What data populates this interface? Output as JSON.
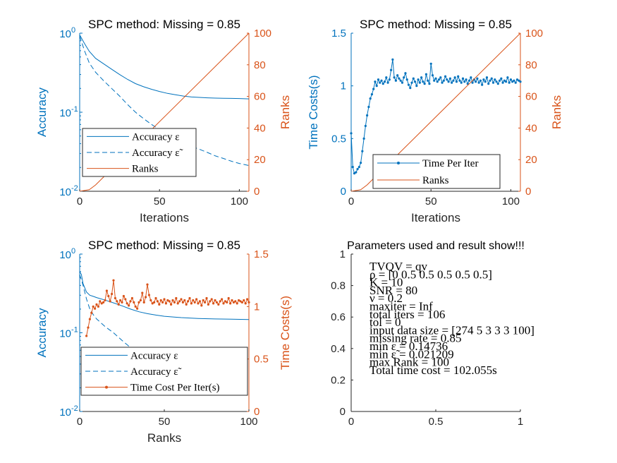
{
  "colors": {
    "blue": "#0072BD",
    "orange": "#D95319",
    "axis": "#262626"
  },
  "chart_data": [
    {
      "type": "line",
      "title": "SPC method: Missing = 0.85",
      "xlabel": "Iterations",
      "ylabel_left": "Accuracy",
      "ylabel_right": "Ranks",
      "left_scale": "log",
      "xlim": [
        0,
        106
      ],
      "ylim_left": [
        0.01,
        1
      ],
      "ylim_right": [
        0,
        100
      ],
      "xticks": [
        "0",
        "50",
        "100"
      ],
      "yticks_left": [
        "10",
        "10",
        "10"
      ],
      "yticks_left_exp": [
        "-2",
        "-1",
        "0"
      ],
      "yticks_right": [
        "0",
        "20",
        "40",
        "60",
        "80",
        "100"
      ],
      "legend": [
        "Accuracy ε",
        "Accuracy ε̃",
        "Ranks"
      ],
      "series": [
        {
          "name": "Accuracy ε",
          "axis": "left",
          "style": "solid",
          "x": [
            0,
            3,
            6,
            10,
            15,
            20,
            25,
            30,
            35,
            40,
            45,
            50,
            55,
            60,
            65,
            70,
            75,
            80,
            85,
            90,
            95,
            100,
            106
          ],
          "y": [
            0.95,
            0.74,
            0.59,
            0.48,
            0.41,
            0.35,
            0.3,
            0.26,
            0.23,
            0.21,
            0.195,
            0.183,
            0.173,
            0.166,
            0.16,
            0.156,
            0.154,
            0.152,
            0.151,
            0.15,
            0.1495,
            0.149,
            0.1474
          ]
        },
        {
          "name": "Accuracy ε̃",
          "axis": "left",
          "style": "dashed",
          "x": [
            0,
            3,
            6,
            10,
            15,
            20,
            25,
            30,
            35,
            40,
            45,
            50,
            55,
            60,
            65,
            70,
            75,
            80,
            85,
            90,
            95,
            100,
            106
          ],
          "y": [
            0.92,
            0.6,
            0.42,
            0.32,
            0.25,
            0.2,
            0.16,
            0.125,
            0.1,
            0.083,
            0.07,
            0.06,
            0.052,
            0.046,
            0.041,
            0.037,
            0.034,
            0.031,
            0.028,
            0.026,
            0.024,
            0.0225,
            0.0212
          ]
        },
        {
          "name": "Ranks",
          "axis": "right",
          "style": "solid",
          "x": [
            0,
            6,
            10,
            106
          ],
          "y": [
            0,
            1,
            4,
            100
          ]
        }
      ]
    },
    {
      "type": "line",
      "title": "SPC method: Missing = 0.85",
      "xlabel": "Iterations",
      "ylabel_left": "Time Costs(s)",
      "ylabel_right": "Ranks",
      "xlim": [
        0,
        106
      ],
      "ylim_left": [
        0,
        1.5
      ],
      "ylim_right": [
        0,
        100
      ],
      "xticks": [
        "0",
        "50",
        "100"
      ],
      "yticks_left": [
        "0",
        "0.5",
        "1",
        "1.5"
      ],
      "yticks_right": [
        "0",
        "20",
        "40",
        "60",
        "80",
        "100"
      ],
      "legend": [
        "Time Per Iter",
        "Ranks"
      ],
      "series": [
        {
          "name": "Time Per Iter",
          "axis": "left",
          "style": "dots",
          "y": [
            0.55,
            0.23,
            0.17,
            0.18,
            0.21,
            0.23,
            0.27,
            0.38,
            0.5,
            0.62,
            0.72,
            0.8,
            0.88,
            0.92,
            0.97,
            1.04,
            1.0,
            1.06,
            1.03,
            1.05,
            1.02,
            1.04,
            1.08,
            1.03,
            1.06,
            1.15,
            1.25,
            1.08,
            1.05,
            1.1,
            1.07,
            1.05,
            1.03,
            1.08,
            1.12,
            1.06,
            1.01,
            0.98,
            1.03,
            1.07,
            1.04,
            1.0,
            1.06,
            1.03,
            1.08,
            1.04,
            1.02,
            1.11,
            1.05,
            1.02,
            1.21,
            1.1,
            1.05,
            1.07,
            1.04,
            1.06,
            1.08,
            1.03,
            1.05,
            1.09,
            1.06,
            1.04,
            1.07,
            1.03,
            1.05,
            1.08,
            1.04,
            1.09,
            1.05,
            1.03,
            1.07,
            1.04,
            1.06,
            1.02,
            1.05,
            1.08,
            1.03,
            1.06,
            1.04,
            1.07,
            1.03,
            1.05,
            1.01,
            1.06,
            1.04,
            1.08,
            1.02,
            1.05,
            1.07,
            1.03,
            1.06,
            1.04,
            1.02,
            1.05,
            1.07,
            1.03,
            1.05,
            1.04,
            1.08,
            1.03,
            1.06,
            1.04,
            1.05,
            1.03,
            1.06,
            1.05,
            1.04
          ]
        },
        {
          "name": "Ranks",
          "axis": "right",
          "style": "solid",
          "x": [
            0,
            6,
            10,
            106
          ],
          "y": [
            0,
            1,
            4,
            100
          ]
        }
      ]
    },
    {
      "type": "line",
      "title": "SPC method: Missing = 0.85",
      "xlabel": "Ranks",
      "ylabel_left": "Accuracy",
      "ylabel_right": "Time Costs(s)",
      "left_scale": "log",
      "xlim": [
        0,
        100
      ],
      "ylim_left": [
        0.01,
        1
      ],
      "ylim_right": [
        0,
        1.5
      ],
      "xticks": [
        "0",
        "50",
        "100"
      ],
      "yticks_left": [
        "10",
        "10",
        "10"
      ],
      "yticks_left_exp": [
        "-2",
        "-1",
        "0"
      ],
      "yticks_right": [
        "0",
        "0.5",
        "1",
        "1.5"
      ],
      "legend": [
        "Accuracy ε",
        "Accuracy ε̃",
        "Time Cost Per Iter(s)"
      ],
      "series": [
        {
          "name": "Accuracy ε",
          "axis": "left",
          "style": "solid",
          "x": [
            0,
            1,
            2,
            4,
            6,
            8,
            10,
            15,
            20,
            25,
            30,
            35,
            40,
            45,
            50,
            60,
            70,
            80,
            90,
            100
          ],
          "y": [
            0.6,
            0.55,
            0.42,
            0.33,
            0.3,
            0.29,
            0.28,
            0.26,
            0.24,
            0.22,
            0.2,
            0.185,
            0.175,
            0.168,
            0.162,
            0.156,
            0.152,
            0.15,
            0.149,
            0.1474
          ]
        },
        {
          "name": "Accuracy ε̃",
          "axis": "left",
          "style": "dashed",
          "x": [
            0,
            2,
            4,
            6,
            8,
            10,
            15,
            20,
            25,
            30,
            35,
            40,
            45,
            50,
            55
          ],
          "y": [
            0.55,
            0.4,
            0.27,
            0.2,
            0.17,
            0.15,
            0.12,
            0.1,
            0.08,
            0.065,
            0.053,
            0.043,
            0.035,
            0.028,
            0.023
          ]
        },
        {
          "name": "Time Cost Per Iter(s)",
          "axis": "right",
          "style": "dots",
          "x": [
            4,
            5,
            6,
            7,
            8,
            9,
            10,
            11,
            12,
            13,
            14,
            15,
            16,
            17,
            18,
            19,
            20,
            21,
            22,
            23,
            24,
            25,
            26,
            27,
            28,
            29,
            30,
            31,
            32,
            33,
            34,
            35,
            36,
            37,
            38,
            39,
            40,
            41,
            42,
            43,
            44,
            45,
            46,
            47,
            48,
            49,
            50,
            51,
            52,
            53,
            54,
            55,
            56,
            57,
            58,
            59,
            60,
            61,
            62,
            63,
            64,
            65,
            66,
            67,
            68,
            69,
            70,
            71,
            72,
            73,
            74,
            75,
            76,
            77,
            78,
            79,
            80,
            81,
            82,
            83,
            84,
            85,
            86,
            87,
            88,
            89,
            90,
            91,
            92,
            93,
            94,
            95,
            96,
            97,
            98,
            99,
            100
          ],
          "y": [
            0.72,
            0.8,
            0.88,
            0.94,
            1.0,
            0.98,
            1.02,
            1.0,
            1.05,
            1.03,
            1.04,
            1.06,
            1.15,
            1.1,
            1.05,
            1.12,
            1.25,
            1.08,
            1.05,
            1.02,
            1.06,
            1.04,
            1.1,
            1.07,
            1.03,
            1.01,
            1.05,
            1.08,
            1.04,
            1.0,
            0.98,
            1.04,
            1.06,
            1.13,
            1.04,
            1.09,
            1.21,
            1.11,
            1.06,
            1.03,
            1.04,
            1.08,
            1.05,
            1.02,
            1.06,
            1.04,
            1.07,
            1.03,
            1.06,
            1.05,
            1.02,
            1.06,
            1.04,
            1.08,
            1.03,
            1.05,
            1.07,
            1.04,
            1.06,
            1.02,
            1.05,
            1.08,
            1.03,
            1.06,
            1.04,
            1.07,
            1.03,
            1.05,
            1.01,
            1.06,
            1.04,
            1.08,
            1.02,
            1.05,
            1.07,
            1.03,
            1.06,
            1.04,
            1.02,
            1.05,
            1.07,
            1.03,
            1.05,
            1.04,
            1.08,
            1.03,
            1.06,
            1.04,
            1.05,
            1.03,
            1.06,
            1.05,
            1.04,
            1.06,
            1.03,
            1.07,
            1.04
          ]
        }
      ]
    },
    {
      "type": "table",
      "title": "Parameters used and result show!!!",
      "xlim": [
        0,
        1
      ],
      "ylim": [
        0,
        1
      ],
      "xticks": [
        "0",
        "0.5",
        "1"
      ],
      "yticks": [
        "0",
        "0.2",
        "0.4",
        "0.6",
        "0.8",
        "1"
      ],
      "lines": [
        "TVQV = qv",
        "ρ = [0 0.5 0.5 0.5 0.5 0.5]",
        "K = 10",
        "SNR = 80",
        "ν = 0.2",
        "maxiter = Inf",
        "total iters = 106",
        "tol = 0",
        "input data size = [274 5 3 3 3 100]",
        "missing rate = 0.85",
        "min ε = 0.14736",
        "min ε̃ = 0.021209",
        "max Rank = 100",
        "Total time cost = 102.055s"
      ]
    }
  ]
}
